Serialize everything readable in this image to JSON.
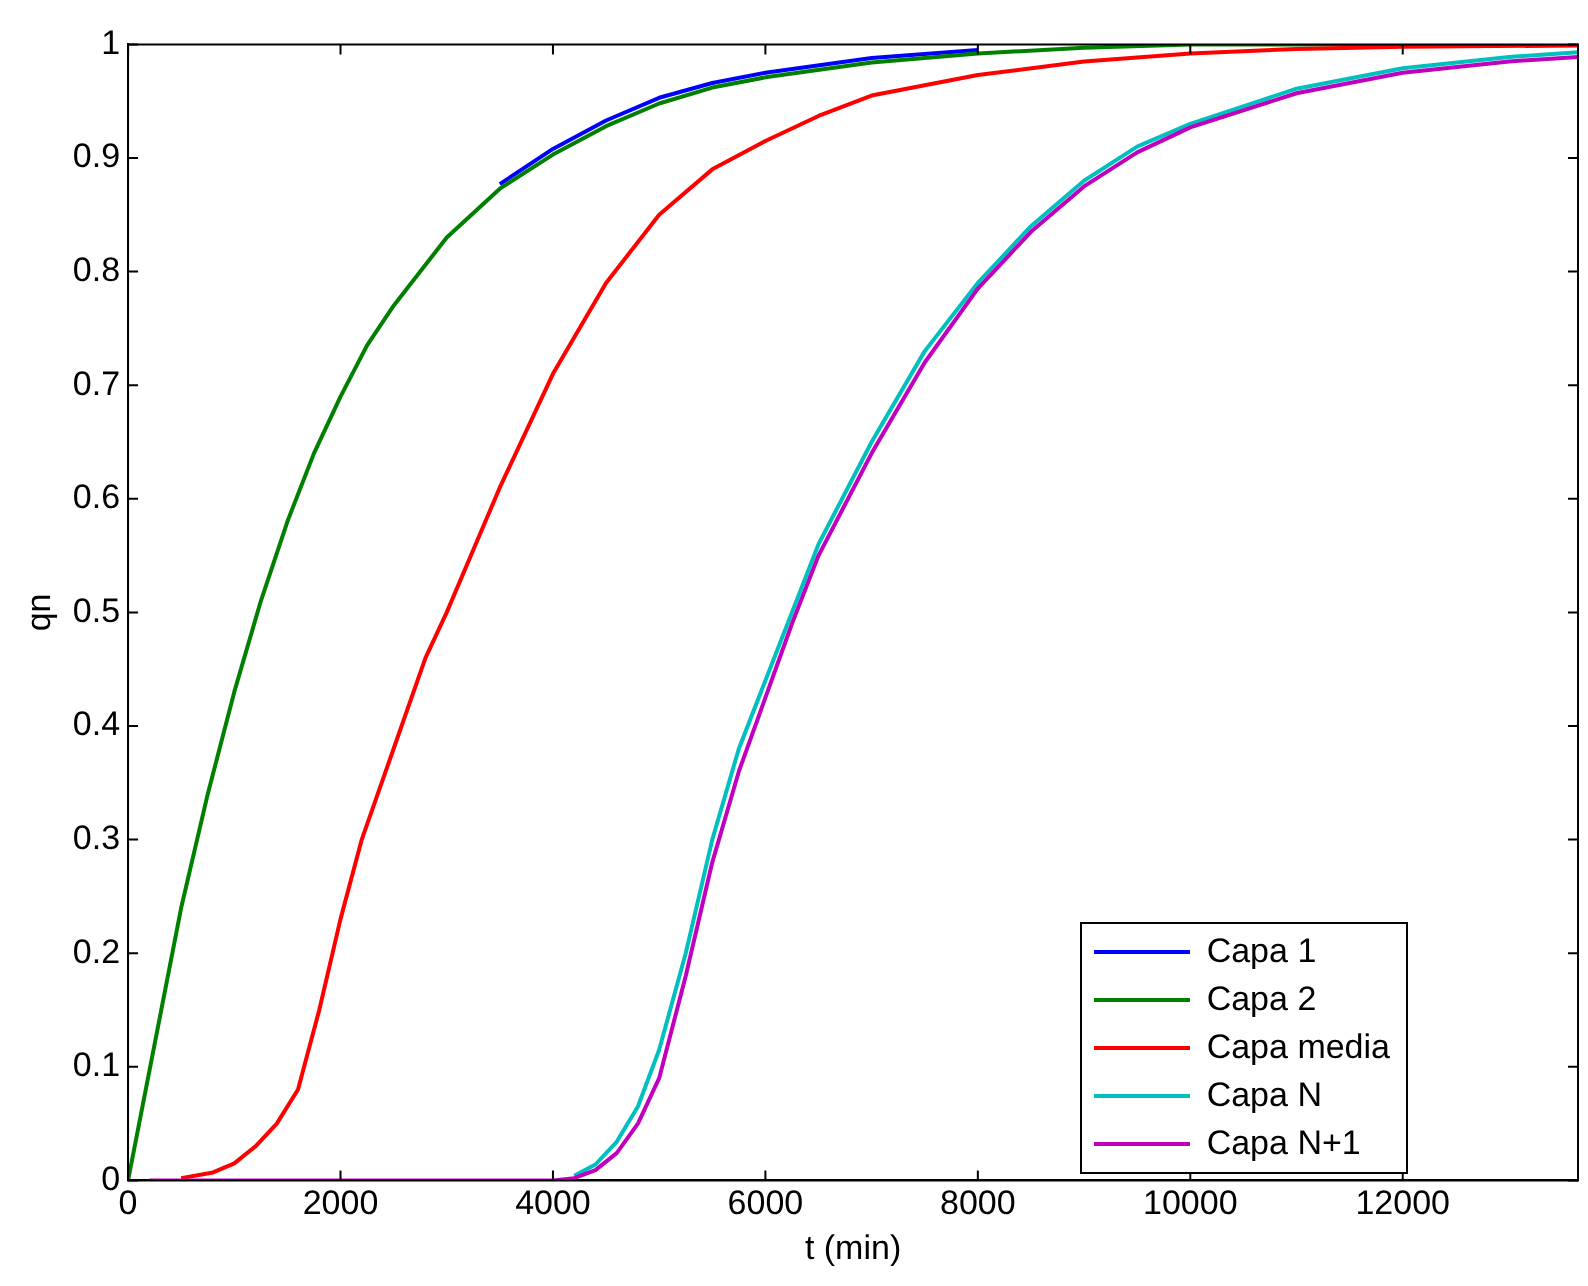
{
  "chart_data": {
    "type": "line",
    "xlabel": "t (min)",
    "ylabel": "qn",
    "xlim": [
      0,
      13650
    ],
    "ylim": [
      0,
      1
    ],
    "xticks": [
      0,
      2000,
      4000,
      6000,
      8000,
      10000,
      12000
    ],
    "yticks": [
      0,
      0.1,
      0.2,
      0.3,
      0.4,
      0.5,
      0.6,
      0.7,
      0.8,
      0.9,
      1
    ],
    "grid": false,
    "legend": "bottom right",
    "marker": "none",
    "line_style": "solid",
    "series": [
      {
        "name": "Capa 1",
        "color": "#0000ff",
        "x": [
          3500,
          4000,
          4500,
          5000,
          5500,
          6000,
          7000,
          8000
        ],
        "values": [
          0.877,
          0.908,
          0.933,
          0.953,
          0.966,
          0.975,
          0.988,
          0.995
        ]
      },
      {
        "name": "Capa 2",
        "color": "#008000",
        "x": [
          0,
          250,
          500,
          750,
          1000,
          1250,
          1500,
          1750,
          2000,
          2250,
          2500,
          3000,
          3500,
          4000,
          4500,
          5000,
          5500,
          6000,
          7000,
          8000,
          9000,
          10000,
          12000,
          13650
        ],
        "values": [
          0,
          0.12,
          0.24,
          0.34,
          0.43,
          0.51,
          0.58,
          0.64,
          0.69,
          0.735,
          0.77,
          0.83,
          0.873,
          0.903,
          0.928,
          0.948,
          0.962,
          0.971,
          0.984,
          0.992,
          0.997,
          1,
          1,
          1
        ]
      },
      {
        "name": "Capa media",
        "color": "#ff0000",
        "x": [
          500,
          800,
          1000,
          1200,
          1400,
          1600,
          1800,
          2000,
          2200,
          2500,
          2800,
          3000,
          3500,
          4000,
          4500,
          5000,
          5500,
          6000,
          6500,
          7000,
          8000,
          9000,
          10000,
          11000,
          12000,
          13650
        ],
        "values": [
          0.002,
          0.007,
          0.015,
          0.03,
          0.05,
          0.08,
          0.15,
          0.23,
          0.3,
          0.38,
          0.46,
          0.5,
          0.61,
          0.71,
          0.79,
          0.85,
          0.89,
          0.915,
          0.937,
          0.955,
          0.973,
          0.985,
          0.992,
          0.996,
          0.998,
          0.999
        ]
      },
      {
        "name": "Capa N",
        "color": "#00bfbf",
        "x": [
          4200,
          4400,
          4600,
          4800,
          5000,
          5250,
          5500,
          5750,
          6000,
          6250,
          6500,
          7000,
          7500,
          8000,
          8500,
          9000,
          9500,
          10000,
          11000,
          12000,
          13000,
          13650
        ],
        "values": [
          0.004,
          0.014,
          0.034,
          0.065,
          0.115,
          0.2,
          0.3,
          0.38,
          0.44,
          0.5,
          0.56,
          0.65,
          0.73,
          0.79,
          0.84,
          0.88,
          0.91,
          0.93,
          0.961,
          0.979,
          0.989,
          0.993
        ]
      },
      {
        "name": "Capa N+1",
        "color": "#bf00bf",
        "x": [
          200,
          4000,
          4200,
          4400,
          4600,
          4800,
          5000,
          5250,
          5500,
          5750,
          6000,
          6250,
          6500,
          7000,
          7500,
          8000,
          8500,
          9000,
          9500,
          10000,
          11000,
          12000,
          13000,
          13650
        ],
        "values": [
          0,
          0,
          0.002,
          0.009,
          0.024,
          0.05,
          0.09,
          0.18,
          0.28,
          0.36,
          0.425,
          0.49,
          0.55,
          0.64,
          0.72,
          0.785,
          0.835,
          0.875,
          0.905,
          0.927,
          0.957,
          0.975,
          0.985,
          0.989
        ]
      }
    ]
  }
}
